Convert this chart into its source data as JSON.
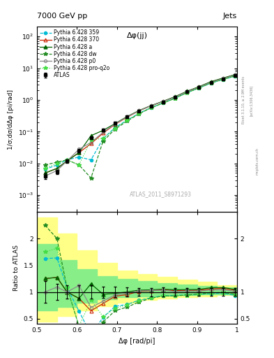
{
  "title_top": "7000 GeV pp",
  "title_right": "Jets",
  "annotation_main": "ATLAS_2011_S8971293",
  "annotation_top": "Δφ(jj)",
  "ylabel_main": "1/σ;dσ/dΔφ [pi/rad]",
  "ylabel_ratio": "Ratio to ATLAS",
  "xlabel": "Δφ [rad/pi]",
  "xlim": [
    0.5,
    1.0
  ],
  "ylim_main": [
    0.0003,
    200.0
  ],
  "ylim_ratio": [
    0.4,
    2.5
  ],
  "atlas_x": [
    0.52,
    0.55,
    0.575,
    0.605,
    0.635,
    0.665,
    0.695,
    0.725,
    0.755,
    0.785,
    0.815,
    0.845,
    0.875,
    0.905,
    0.935,
    0.965,
    0.995
  ],
  "atlas_y": [
    0.004,
    0.0055,
    0.012,
    0.025,
    0.065,
    0.115,
    0.185,
    0.3,
    0.45,
    0.64,
    0.86,
    1.22,
    1.8,
    2.5,
    3.5,
    4.5,
    6.0
  ],
  "atlas_yerr": [
    0.0008,
    0.0008,
    0.0015,
    0.003,
    0.008,
    0.012,
    0.018,
    0.025,
    0.035,
    0.05,
    0.07,
    0.09,
    0.13,
    0.18,
    0.25,
    0.35,
    0.45
  ],
  "p359_x": [
    0.52,
    0.55,
    0.575,
    0.605,
    0.635,
    0.665,
    0.695,
    0.725,
    0.755,
    0.785,
    0.815,
    0.845,
    0.875,
    0.905,
    0.935,
    0.965,
    0.995
  ],
  "p359_y": [
    0.0065,
    0.009,
    0.013,
    0.016,
    0.013,
    0.06,
    0.135,
    0.23,
    0.38,
    0.57,
    0.8,
    1.14,
    1.7,
    2.38,
    3.4,
    4.4,
    5.6
  ],
  "p370_x": [
    0.52,
    0.55,
    0.575,
    0.605,
    0.635,
    0.665,
    0.695,
    0.725,
    0.755,
    0.785,
    0.815,
    0.845,
    0.875,
    0.905,
    0.935,
    0.965,
    0.995
  ],
  "p370_y": [
    0.005,
    0.007,
    0.012,
    0.022,
    0.042,
    0.09,
    0.17,
    0.285,
    0.455,
    0.655,
    0.895,
    1.25,
    1.85,
    2.58,
    3.7,
    4.8,
    6.2
  ],
  "pa_x": [
    0.52,
    0.55,
    0.575,
    0.605,
    0.635,
    0.665,
    0.695,
    0.725,
    0.755,
    0.785,
    0.815,
    0.845,
    0.875,
    0.905,
    0.935,
    0.965,
    0.995
  ],
  "pa_y": [
    0.005,
    0.007,
    0.012,
    0.022,
    0.075,
    0.11,
    0.18,
    0.3,
    0.465,
    0.665,
    0.905,
    1.27,
    1.88,
    2.62,
    3.78,
    4.88,
    6.28
  ],
  "pdw_x": [
    0.52,
    0.55,
    0.575,
    0.605,
    0.635,
    0.665,
    0.695,
    0.725,
    0.755,
    0.785,
    0.815,
    0.845,
    0.875,
    0.905,
    0.935,
    0.965,
    0.995
  ],
  "pdw_y": [
    0.009,
    0.011,
    0.013,
    0.009,
    0.0035,
    0.05,
    0.12,
    0.215,
    0.365,
    0.565,
    0.795,
    1.13,
    1.7,
    2.4,
    3.45,
    4.45,
    5.75
  ],
  "pp0_x": [
    0.52,
    0.55,
    0.575,
    0.605,
    0.635,
    0.665,
    0.695,
    0.725,
    0.755,
    0.785,
    0.815,
    0.845,
    0.875,
    0.905,
    0.935,
    0.965,
    0.995
  ],
  "pp0_y": [
    0.004,
    0.006,
    0.012,
    0.028,
    0.046,
    0.095,
    0.175,
    0.293,
    0.458,
    0.658,
    0.888,
    1.23,
    1.83,
    2.54,
    3.63,
    4.68,
    6.08
  ],
  "pq2o_x": [
    0.52,
    0.55,
    0.575,
    0.605,
    0.635,
    0.665,
    0.695,
    0.725,
    0.755,
    0.785,
    0.815,
    0.845,
    0.875,
    0.905,
    0.935,
    0.965,
    0.995
  ],
  "pq2o_y": [
    0.007,
    0.01,
    0.013,
    0.009,
    0.055,
    0.062,
    0.128,
    0.228,
    0.378,
    0.568,
    0.798,
    1.13,
    1.68,
    2.38,
    3.43,
    4.43,
    5.68
  ],
  "green_band_lo": [
    0.65,
    0.72,
    0.8,
    0.86,
    0.9,
    0.92,
    0.93,
    0.94,
    0.95,
    0.96,
    0.97
  ],
  "green_band_hi": [
    1.9,
    1.6,
    1.42,
    1.3,
    1.24,
    1.2,
    1.17,
    1.14,
    1.11,
    1.08,
    1.04
  ],
  "yellow_band_lo": [
    0.45,
    0.55,
    0.65,
    0.73,
    0.8,
    0.85,
    0.88,
    0.9,
    0.92,
    0.94,
    0.95
  ],
  "yellow_band_hi": [
    2.4,
    2.1,
    1.78,
    1.55,
    1.4,
    1.33,
    1.28,
    1.23,
    1.19,
    1.13,
    1.07
  ],
  "band_x": [
    0.5,
    0.55,
    0.6,
    0.65,
    0.7,
    0.75,
    0.8,
    0.85,
    0.9,
    0.95,
    1.0
  ],
  "color_p359": "#00bcd4",
  "color_p370": "#cc2200",
  "color_pa": "#006400",
  "color_pdw": "#228b22",
  "color_pp0": "#888888",
  "color_pq2o": "#44dd44",
  "color_atlas": "#000000",
  "color_yellow": "#ffff88",
  "color_green": "#88ee88"
}
